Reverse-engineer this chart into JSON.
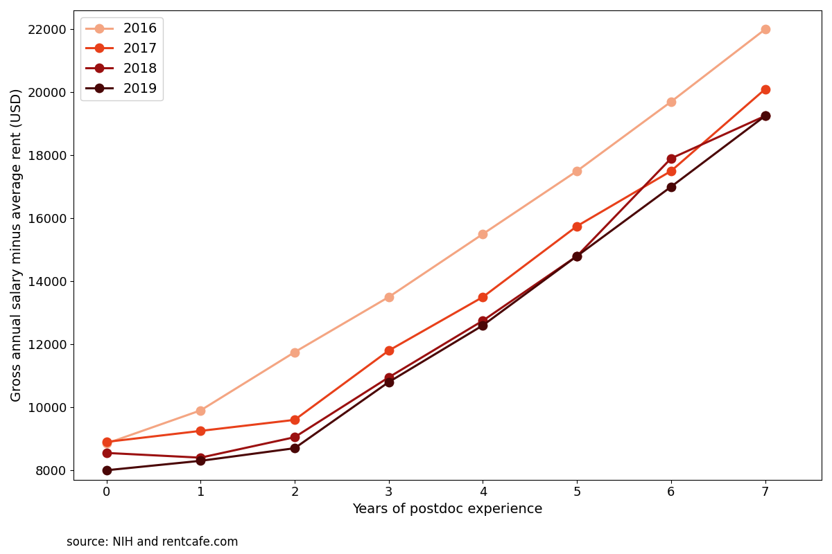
{
  "years": [
    2016,
    2017,
    2018,
    2019
  ],
  "experience": [
    0,
    1,
    2,
    3,
    4,
    5,
    6,
    7
  ],
  "series": {
    "2016": [
      8850,
      9900,
      11750,
      13500,
      15500,
      17500,
      19700,
      22000
    ],
    "2017": [
      8900,
      9250,
      9600,
      11800,
      13500,
      15750,
      17500,
      20100
    ],
    "2018": [
      8550,
      8400,
      9050,
      10950,
      12750,
      14800,
      17900,
      19250
    ],
    "2019": [
      8000,
      8300,
      8700,
      10800,
      12600,
      14800,
      17000,
      19250
    ]
  },
  "colors": {
    "2016": "#F4A582",
    "2017": "#E8401A",
    "2018": "#9B1010",
    "2019": "#4A0606"
  },
  "xlabel": "Years of postdoc experience",
  "ylabel": "Gross annual salary minus average rent (USD)",
  "xlim": [
    -0.35,
    7.6
  ],
  "ylim": [
    7700,
    22600
  ],
  "yticks": [
    8000,
    10000,
    12000,
    14000,
    16000,
    18000,
    20000,
    22000
  ],
  "xticks": [
    0,
    1,
    2,
    3,
    4,
    5,
    6,
    7
  ],
  "source_text": "source: NIH and rentcafe.com",
  "marker": "o",
  "markersize": 9,
  "linewidth": 2.2,
  "legend_fontsize": 14,
  "label_fontsize": 14,
  "tick_fontsize": 13
}
